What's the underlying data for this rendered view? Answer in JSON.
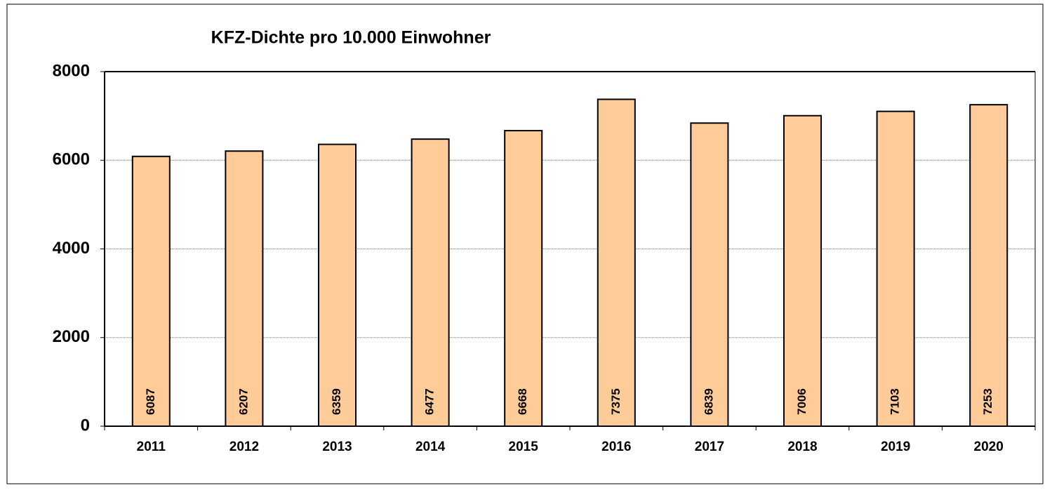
{
  "chart_data": {
    "type": "bar",
    "title": "KFZ-Dichte pro 10.000 Einwohner",
    "categories": [
      "2011",
      "2012",
      "2013",
      "2014",
      "2015",
      "2016",
      "2017",
      "2018",
      "2019",
      "2020"
    ],
    "values": [
      6087,
      6207,
      6359,
      6477,
      6668,
      7375,
      6839,
      7006,
      7103,
      7253
    ],
    "color": "#ffcc99",
    "ylim": [
      0,
      8000
    ],
    "yticks": [
      0,
      2000,
      4000,
      6000,
      8000
    ],
    "grid": true
  }
}
